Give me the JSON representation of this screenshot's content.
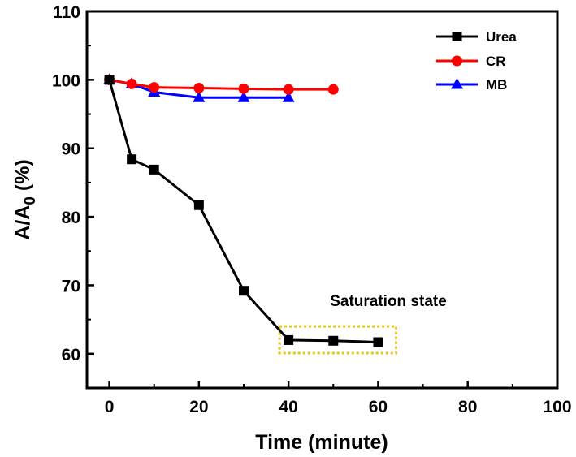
{
  "chart_data": {
    "type": "line",
    "xlabel": "Time (minute)",
    "ylabel_main": "A/A",
    "ylabel_sub": "0",
    "ylabel_suffix": " (%)",
    "xlim": [
      -5,
      100
    ],
    "ylim": [
      55,
      110
    ],
    "x_ticks": [
      0,
      20,
      40,
      60,
      80,
      100
    ],
    "y_ticks": [
      60,
      70,
      80,
      90,
      100,
      110
    ],
    "legend_position": "top-right",
    "series": [
      {
        "name": "Urea",
        "color": "#000000",
        "marker": "square",
        "x": [
          0,
          5,
          10,
          20,
          30,
          40,
          50,
          60
        ],
        "y": [
          100,
          88.4,
          86.9,
          81.7,
          69.2,
          62.0,
          61.9,
          61.7
        ]
      },
      {
        "name": "CR",
        "color": "#ff0000",
        "marker": "circle",
        "x": [
          0,
          5,
          10,
          20,
          30,
          40,
          50
        ],
        "y": [
          100,
          99.4,
          98.9,
          98.8,
          98.7,
          98.6,
          98.6
        ]
      },
      {
        "name": "MB",
        "color": "#0000ff",
        "marker": "triangle",
        "x": [
          0,
          5,
          10,
          20,
          30,
          40
        ],
        "y": [
          100,
          99.4,
          98.2,
          97.4,
          97.4,
          97.4
        ]
      }
    ],
    "annotations": [
      {
        "text": "Saturation state",
        "box_color": "#e6c619",
        "box_x": [
          38,
          64
        ],
        "box_y": [
          60.1,
          64.0
        ]
      }
    ]
  }
}
